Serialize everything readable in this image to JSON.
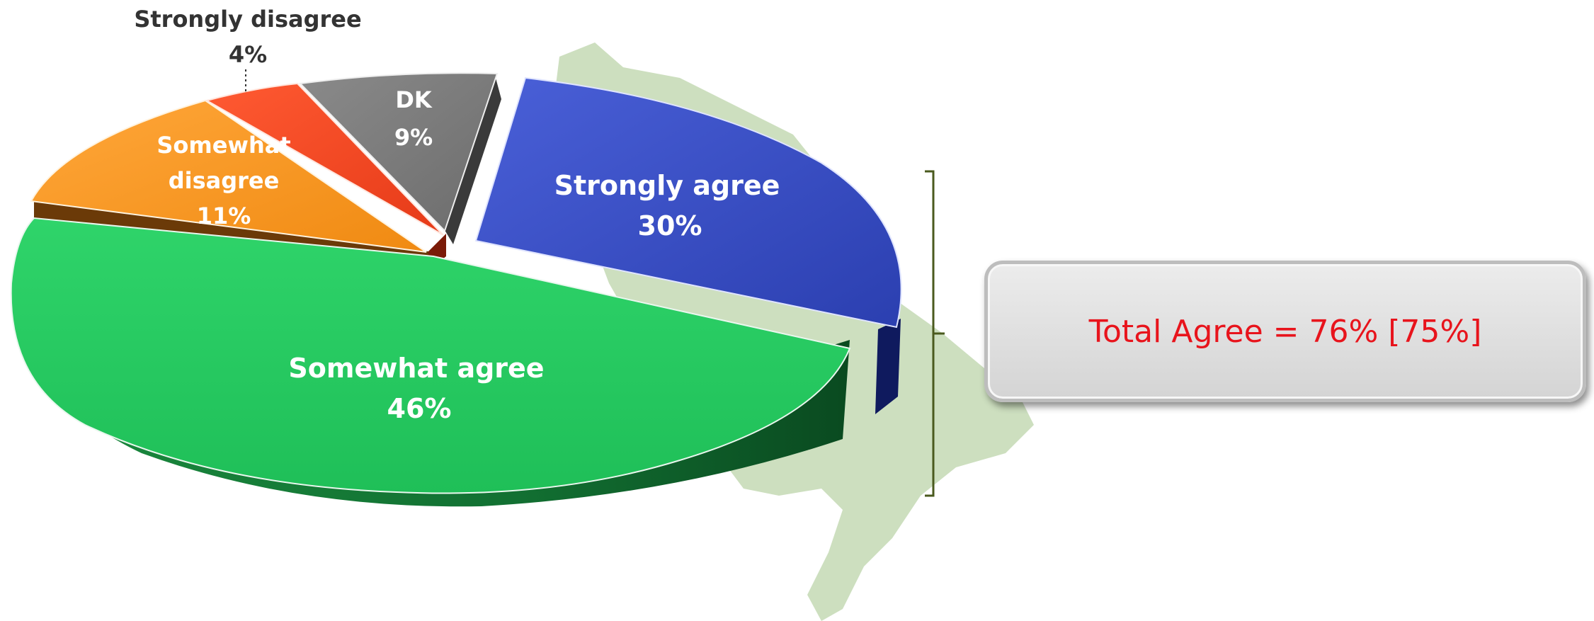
{
  "chart_data": {
    "type": "pie",
    "title": "",
    "slices": [
      {
        "label": "Strongly agree",
        "value": 30,
        "value_text": "30%",
        "color": "#3a4fc8"
      },
      {
        "label": "Somewhat agree",
        "value": 46,
        "value_text": "46%",
        "color": "#22c55e"
      },
      {
        "label": "Somewhat disagree",
        "value": 11,
        "value_text": "11%",
        "color": "#f7941d"
      },
      {
        "label": "Strongly disagree",
        "value": 4,
        "value_text": "4%",
        "color": "#f04a22"
      },
      {
        "label": "DK",
        "value": 9,
        "value_text": "9%",
        "color": "#7f7f7f"
      }
    ],
    "annotation": "Total Agree = 76% [75%]",
    "annotation_color": "#e8141c",
    "bracket_color": "#4a5a1e",
    "background_map_color": "#c8dcb8"
  }
}
